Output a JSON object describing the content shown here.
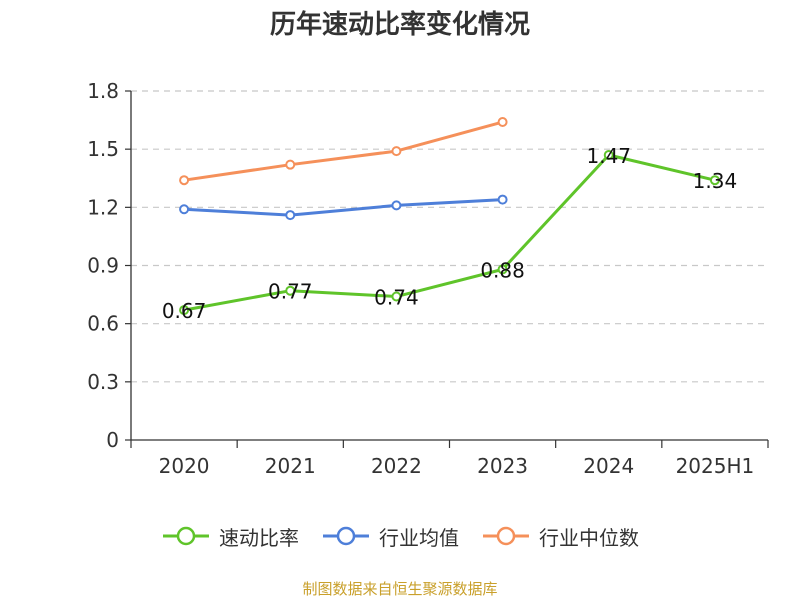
{
  "chart_data": {
    "type": "line",
    "title": "历年速动比率变化情况",
    "xlabel": "",
    "ylabel": "",
    "categories": [
      "2020",
      "2021",
      "2022",
      "2023",
      "2024",
      "2025H1"
    ],
    "ylim": [
      0,
      1.8
    ],
    "yticks": [
      "0",
      "0.3",
      "0.6",
      "0.9",
      "1.2",
      "1.5",
      "1.8"
    ],
    "grid": true,
    "legend_position": "bottom",
    "series": [
      {
        "name": "速动比率",
        "color": "#5fc42a",
        "values": [
          0.67,
          0.77,
          0.74,
          0.88,
          1.47,
          1.34
        ],
        "labels": [
          "0.67",
          "0.77",
          "0.74",
          "0.88",
          "1.47",
          "1.34"
        ]
      },
      {
        "name": "行业均值",
        "color": "#4e7fd9",
        "values": [
          1.19,
          1.16,
          1.21,
          1.24,
          null,
          null
        ]
      },
      {
        "name": "行业中位数",
        "color": "#f5905a",
        "values": [
          1.34,
          1.42,
          1.49,
          1.64,
          null,
          null
        ]
      }
    ]
  },
  "source_note": "制图数据来自恒生聚源数据库"
}
